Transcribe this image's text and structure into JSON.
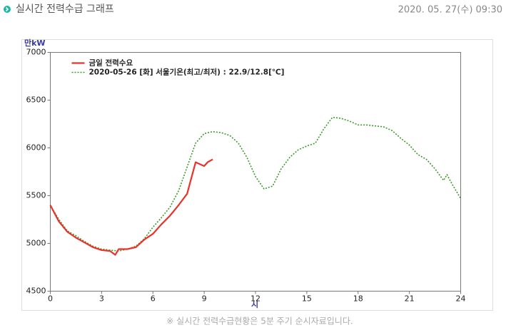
{
  "header": {
    "title": "실시간 전력수급 그래프",
    "datetime": "2020. 05. 27(수) 09:30"
  },
  "chart_data": {
    "type": "line",
    "y_label": "만kW",
    "x_label": "시",
    "xlim": [
      0,
      24
    ],
    "xticks": [
      0,
      3,
      6,
      9,
      12,
      15,
      18,
      21,
      24
    ],
    "ylim": [
      4500,
      7000
    ],
    "yticks": [
      4500,
      5000,
      5500,
      6000,
      6500,
      7000
    ],
    "grid": false,
    "legend": "top-left",
    "series": [
      {
        "name": "금일 전력수요",
        "color": "#e8322a",
        "style": "solid",
        "x": [
          0,
          0.5,
          1,
          1.5,
          2,
          2.5,
          3,
          3.5,
          3.8,
          4,
          4.5,
          5,
          5.5,
          6,
          6.5,
          7,
          7.5,
          8,
          8.5,
          9,
          9.2,
          9.5
        ],
        "values": [
          5400,
          5230,
          5120,
          5060,
          5010,
          4960,
          4930,
          4920,
          4880,
          4940,
          4940,
          4960,
          5040,
          5100,
          5200,
          5290,
          5400,
          5520,
          5850,
          5810,
          5850,
          5880
        ]
      },
      {
        "name": "2020-05-26 [화] 서울기온(최고/최저) : 22.9/12.8[℃]",
        "color": "#3a9a2a",
        "style": "dotted",
        "x": [
          0,
          0.5,
          1,
          1.5,
          2,
          2.5,
          3,
          3.5,
          4,
          4.5,
          5,
          5.5,
          6,
          6.5,
          7,
          7.5,
          8,
          8.5,
          9,
          9.5,
          10,
          10.5,
          11,
          11.5,
          12,
          12.5,
          13,
          13.5,
          14,
          14.5,
          15,
          15.5,
          16,
          16.5,
          17,
          17.5,
          18,
          18.5,
          19,
          19.5,
          20,
          20.5,
          21,
          21.5,
          22,
          22.5,
          23,
          23.2,
          23.5,
          24
        ],
        "values": [
          5400,
          5250,
          5130,
          5080,
          5020,
          4970,
          4940,
          4930,
          4920,
          4940,
          4970,
          5050,
          5170,
          5270,
          5380,
          5550,
          5800,
          6050,
          6150,
          6170,
          6160,
          6130,
          6050,
          5900,
          5700,
          5570,
          5600,
          5780,
          5900,
          5980,
          6020,
          6050,
          6200,
          6320,
          6310,
          6280,
          6240,
          6240,
          6230,
          6220,
          6180,
          6100,
          6030,
          5930,
          5880,
          5780,
          5660,
          5720,
          5620,
          5470
        ]
      }
    ]
  },
  "footer": {
    "note": "※ 실시간 전력수급현황은 5분 주기 순시자료입니다."
  }
}
